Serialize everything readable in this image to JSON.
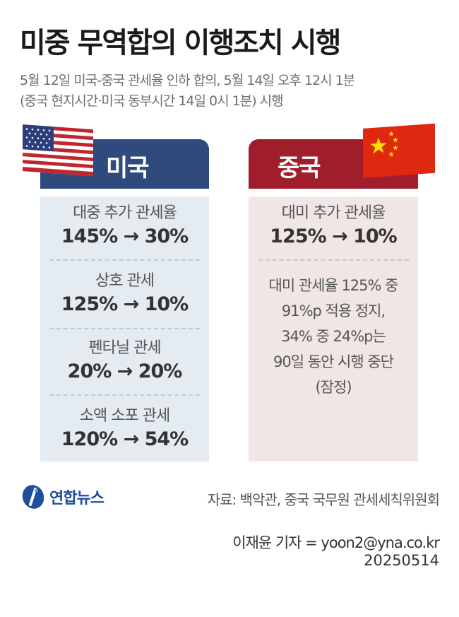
{
  "title": "미중 무역합의 이행조치 시행",
  "subtitle": {
    "line1": "5월 12일 미국-중국 관세율 인하 합의, 5월 14일 오후 12시 1분",
    "line2": "(중국 현지시간·미국 동부시간 14일 0시 1분) 시행"
  },
  "us": {
    "header": "미국",
    "color": "#2f4b7e",
    "items": [
      {
        "label": "대중 추가 관세율",
        "value": "145% → 30%"
      },
      {
        "label": "상호 관세",
        "value": "125% → 10%"
      },
      {
        "label": "펜타닐 관세",
        "value": "20% → 20%"
      },
      {
        "label": "소액 소포 관세",
        "value": "120% → 54%"
      }
    ]
  },
  "china": {
    "header": "중국",
    "color": "#a01e2b",
    "item": {
      "label": "대미 추가 관세율",
      "value": "125% → 10%"
    },
    "note": [
      "대미 관세율 125% 중",
      "91%p 적용 정지,",
      "34% 중 24%p는",
      "90일 동안 시행 중단",
      "(잠정)"
    ]
  },
  "logo": {
    "name": "연합뉴스",
    "icon": "yonhap-logo-icon"
  },
  "source": "자료: 백악관, 중국 국무원 관세세칙위원회",
  "credit": "이재윤 기자 = yoon2@yna.co.kr",
  "date": "20250514"
}
